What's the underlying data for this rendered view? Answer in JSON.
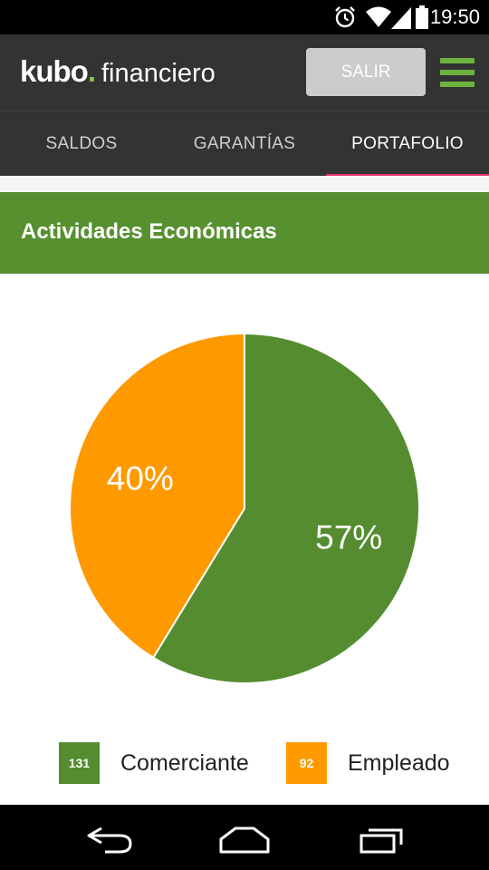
{
  "status_bar": {
    "time": "19:50",
    "icons": [
      "alarm-icon",
      "wifi-icon",
      "signal-icon",
      "battery-icon"
    ]
  },
  "app_bar": {
    "logo_brand": "kubo",
    "logo_dot": ".",
    "logo_sub": "financiero",
    "logout_label": "SALIR",
    "menu_icon": "hamburger-menu-icon",
    "colors": {
      "bar": "#333333",
      "accent": "#6db33f",
      "button": "#cccccc"
    }
  },
  "tabs": [
    {
      "label": "SALDOS",
      "active": false
    },
    {
      "label": "GARANTÍAS",
      "active": false
    },
    {
      "label": "PORTAFOLIO",
      "active": true
    }
  ],
  "tab_indicator_color": "#e7336f",
  "section": {
    "title": "Actividades Económicas",
    "color": "#56902f"
  },
  "chart_data": {
    "type": "pie",
    "slices": [
      {
        "label": "Comerciante",
        "value": 131,
        "percent_label": "57%",
        "color": "#548c2f"
      },
      {
        "label": "Empleado",
        "value": 92,
        "percent_label": "40%",
        "color": "#ff9900"
      }
    ]
  },
  "nav_bar": {
    "icons": [
      "back-icon",
      "home-icon",
      "recent-apps-icon"
    ]
  }
}
